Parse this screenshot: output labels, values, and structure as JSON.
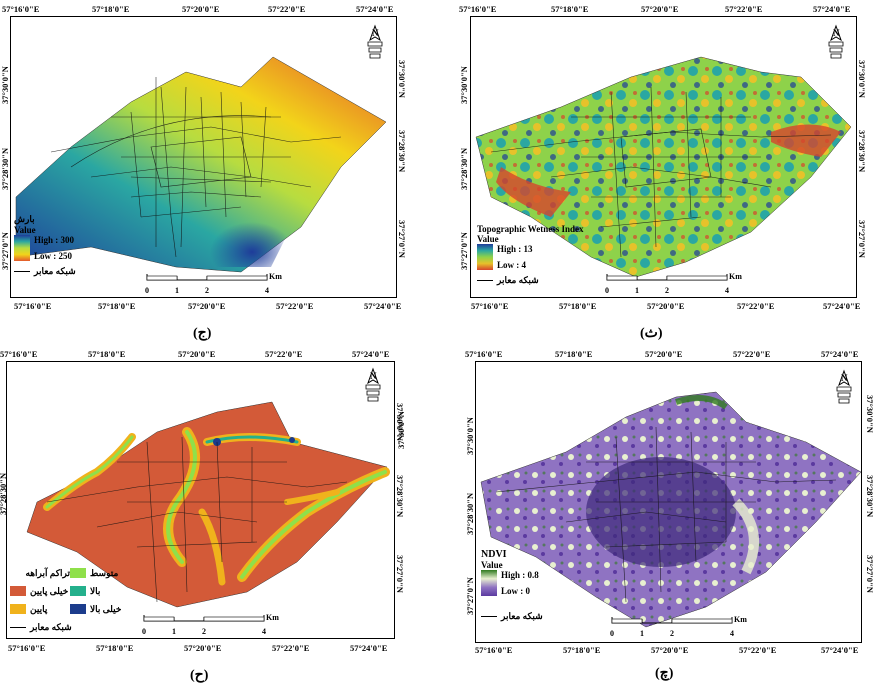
{
  "panel_top_left": {
    "caption": "(ج)",
    "legend_title": "بارش",
    "legend_value_label": "Value",
    "legend_high": "High : 300",
    "legend_low": "Low : 250",
    "road_label": "شبکه معابر",
    "colors": [
      "#1e3c9a",
      "#2aa7a2",
      "#b7dc40",
      "#f2d41a",
      "#e3582c"
    ]
  },
  "panel_top_right": {
    "caption": "(ث)",
    "legend_title": "Topographic Wetness Index",
    "legend_value_label": "Value",
    "legend_high": "High : 13",
    "legend_low": "Low : 4",
    "road_label": "شبکه معابر",
    "colors": [
      "#1e3c9a",
      "#2aa7a2",
      "#8ed24a",
      "#e7c22a",
      "#d7452c"
    ]
  },
  "panel_bottom_left": {
    "caption": "(ح)",
    "legend_title": "تراکم آبراهه",
    "classes": [
      {
        "label": "خیلی پایین",
        "color": "#d35a38"
      },
      {
        "label": "متوسط",
        "color": "#8fe04a"
      },
      {
        "label": "پایین",
        "color": "#f0b21c"
      },
      {
        "label": "بالا",
        "color": "#24b08c"
      },
      {
        "label": "خیلی بالا",
        "color": "#1c3c8c"
      }
    ],
    "road_label": "شبکه معابر"
  },
  "panel_bottom_right": {
    "caption": "(چ)",
    "legend_title": "NDVI",
    "legend_value_label": "Value",
    "legend_high": "High : 0.8",
    "legend_low": "Low : 0",
    "road_label": "شبکه معابر",
    "colors": [
      "#2f7a1e",
      "#e8f0d0",
      "#8f73c2",
      "#5b3aa0"
    ]
  },
  "shared": {
    "lon_ticks": [
      "57°16'0\"E",
      "57°18'0\"E",
      "57°20'0\"E",
      "57°22'0\"E",
      "57°24'0\"E"
    ],
    "lat_ticks": [
      "37°30'0\"N",
      "37°28'30\"N",
      "37°27'0\"N"
    ],
    "scale_labels": [
      "0",
      "1",
      "2",
      "4"
    ],
    "scale_unit": "Km",
    "north_label": "N"
  }
}
